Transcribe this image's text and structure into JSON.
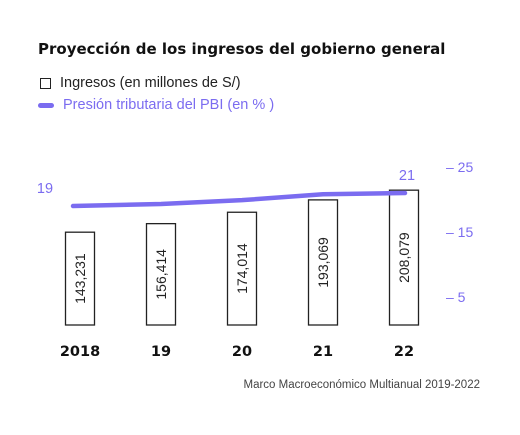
{
  "chart_data": {
    "type": "bar",
    "title": "Proyección de los ingresos del gobierno general",
    "categories": [
      "2018",
      "19",
      "20",
      "21",
      "22"
    ],
    "series": [
      {
        "name": "Ingresos (en millones de S/)",
        "type": "bar",
        "values": [
          143231,
          156414,
          174014,
          193069,
          208079
        ],
        "labels": [
          "143,231",
          "156,414",
          "174,014",
          "193,069",
          "208,079"
        ]
      },
      {
        "name": "Presión tributaria del PBI (en % )",
        "type": "line",
        "axis": "right",
        "values": [
          19.0,
          19.3,
          19.9,
          20.8,
          21.0
        ],
        "point_labels": [
          "19",
          "",
          "",
          "",
          "21"
        ]
      }
    ],
    "right_axis": {
      "ticks": [
        25,
        15,
        5
      ],
      "tick_labels": [
        "– 25",
        "– 15",
        "– 5"
      ]
    },
    "colors": {
      "line": "#7b6cf0",
      "bar_stroke": "#222222",
      "text": "#111111"
    }
  },
  "source": "Marco Macroeconómico Multianual 2019-2022"
}
